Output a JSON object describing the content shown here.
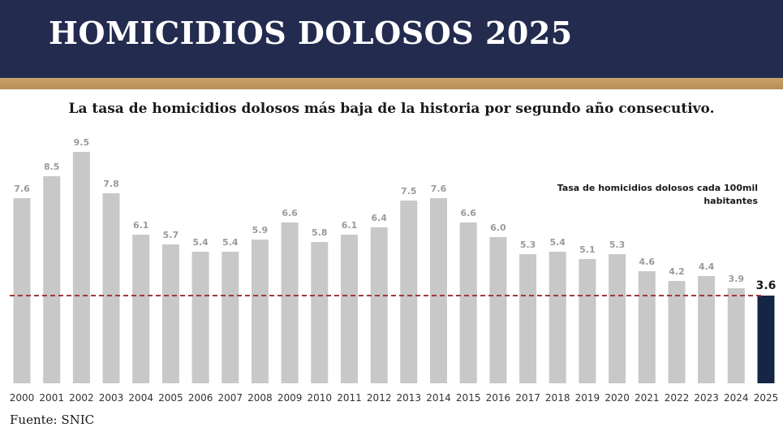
{
  "header": {
    "title": "HOMICIDIOS DOLOSOS 2025"
  },
  "subtitle": "La tasa de homicidios dolosos más baja de la historia por segundo año consecutivo.",
  "legend_note": "Tasa de homicidios dolosos cada 100mil habitantes",
  "source": "Fuente: SNIC",
  "colors": {
    "header": "#232b4f",
    "gold": "#c9a46a",
    "bar": "#c8c8c8",
    "highlight_bar": "#152544",
    "reference_line": "#9e3b3b",
    "value_label": "#9a9a9a"
  },
  "chart_data": {
    "type": "bar",
    "categories": [
      "2000",
      "2001",
      "2002",
      "2003",
      "2004",
      "2005",
      "2006",
      "2007",
      "2008",
      "2009",
      "2010",
      "2011",
      "2012",
      "2013",
      "2014",
      "2015",
      "2016",
      "2017",
      "2018",
      "2019",
      "2020",
      "2021",
      "2022",
      "2023",
      "2024",
      "2025"
    ],
    "values": [
      7.6,
      8.5,
      9.5,
      7.8,
      6.1,
      5.7,
      5.4,
      5.4,
      5.9,
      6.6,
      5.8,
      6.1,
      6.4,
      7.5,
      7.6,
      6.6,
      6.0,
      5.3,
      5.4,
      5.1,
      5.3,
      4.6,
      4.2,
      4.4,
      3.9,
      3.6
    ],
    "value_labels": [
      "7.6",
      "8.5",
      "9.5",
      "7.8",
      "6.1",
      "5.7",
      "5.4",
      "5.4",
      "5.9",
      "6.6",
      "5.8",
      "6.1",
      "6.4",
      "7.5",
      "7.6",
      "6.6",
      "6.0",
      "5.3",
      "5.4",
      "5.1",
      "5.3",
      "4.6",
      "4.2",
      "4.4",
      "3.9",
      "3.6"
    ],
    "highlight_index": 25,
    "reference_line": 3.6,
    "ylim": [
      0,
      9.5
    ],
    "grid": false,
    "title": "",
    "xlabel": "",
    "ylabel": ""
  }
}
